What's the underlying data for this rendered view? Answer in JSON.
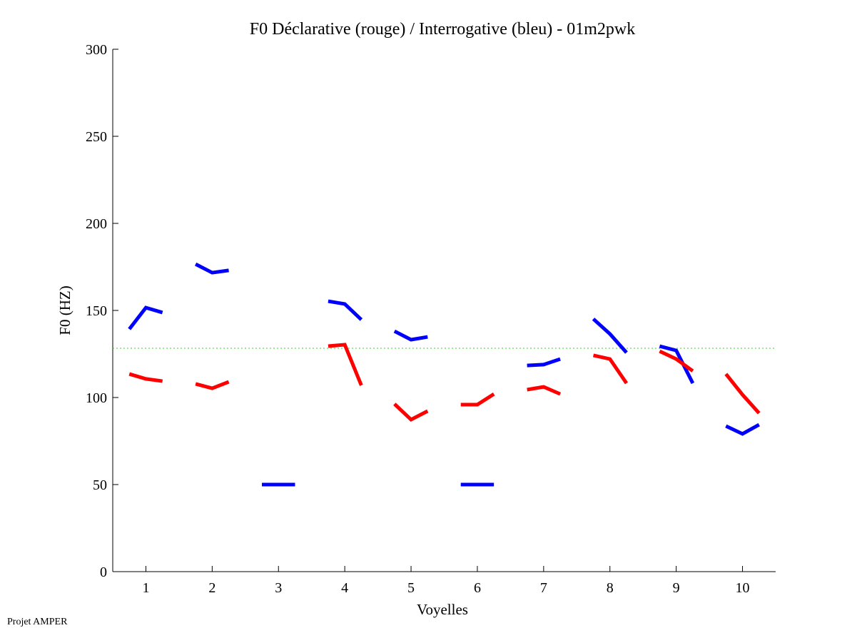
{
  "chart_data": {
    "type": "line",
    "title": "F0 Déclarative (rouge) / Interrogative (bleu) - 01m2pwk",
    "xlabel": "Voyelles",
    "ylabel": "F0 (HZ)",
    "xlim": [
      0.5,
      10.5
    ],
    "ylim": [
      0,
      300
    ],
    "xticks": [
      1,
      2,
      3,
      4,
      5,
      6,
      7,
      8,
      9,
      10
    ],
    "yticks": [
      0,
      50,
      100,
      150,
      200,
      250,
      300
    ],
    "grid": false,
    "reference_line": {
      "value": 128.3,
      "color": "#00cc00",
      "style": "dotted"
    },
    "series": [
      {
        "name": "Interrogative (bleu)",
        "color": "#0000ff",
        "segments": [
          {
            "vowel": 1,
            "values": [
              139.3,
              151.6,
              148.8
            ]
          },
          {
            "vowel": 2,
            "values": [
              176.6,
              171.7,
              173.0
            ]
          },
          {
            "vowel": 3,
            "values": [
              50,
              50,
              50
            ]
          },
          {
            "vowel": 4,
            "values": [
              155.3,
              153.7,
              144.7
            ]
          },
          {
            "vowel": 5,
            "values": [
              138.1,
              133.2,
              134.8
            ]
          },
          {
            "vowel": 6,
            "values": [
              50,
              50,
              50
            ]
          },
          {
            "vowel": 7,
            "values": [
              118.4,
              118.9,
              122.1
            ]
          },
          {
            "vowel": 8,
            "values": [
              145.1,
              136.5,
              125.8
            ]
          },
          {
            "vowel": 9,
            "values": [
              129.5,
              127.0,
              108.2
            ]
          },
          {
            "vowel": 10,
            "values": [
              83.6,
              79.1,
              84.4
            ]
          }
        ]
      },
      {
        "name": "Déclarative (rouge)",
        "color": "#ff0000",
        "segments": [
          {
            "vowel": 1,
            "values": [
              113.5,
              110.7,
              109.4
            ]
          },
          {
            "vowel": 2,
            "values": [
              107.8,
              105.3,
              109.0
            ]
          },
          {
            "vowel": 4,
            "values": [
              129.5,
              130.3,
              107.0
            ]
          },
          {
            "vowel": 5,
            "values": [
              96.3,
              87.3,
              92.2
            ]
          },
          {
            "vowel": 6,
            "values": [
              95.9,
              95.9,
              102.0
            ]
          },
          {
            "vowel": 7,
            "values": [
              104.5,
              106.1,
              102.0
            ]
          },
          {
            "vowel": 8,
            "values": [
              124.2,
              122.1,
              108.2
            ]
          },
          {
            "vowel": 9,
            "values": [
              126.6,
              122.1,
              115.2
            ]
          },
          {
            "vowel": 10,
            "values": [
              113.5,
              101.6,
              91.0
            ]
          }
        ]
      }
    ]
  },
  "footer": "Projet AMPER"
}
